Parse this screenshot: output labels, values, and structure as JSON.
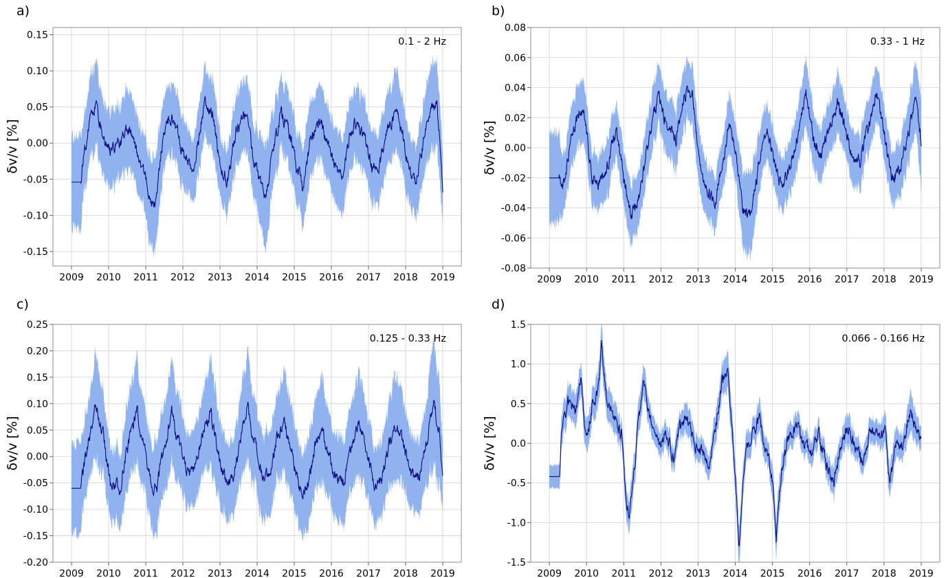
{
  "figure": {
    "band_color": "#90b3f0",
    "line_color": "#0b0b80",
    "panels": [
      "a)",
      "b)",
      "c)",
      "d)"
    ]
  },
  "chart_data": [
    {
      "type": "area",
      "panel": "a)",
      "annotation": "0.1 - 2 Hz",
      "ylabel": "δv/v [%]",
      "xlim": [
        2008.5,
        2019.5
      ],
      "ylim": [
        -0.17,
        0.16
      ],
      "xticks": [
        2009,
        2010,
        2011,
        2012,
        2013,
        2014,
        2015,
        2016,
        2017,
        2018,
        2019
      ],
      "yticks": [
        -0.15,
        -0.1,
        -0.05,
        0.0,
        0.05,
        0.1,
        0.15
      ],
      "ytick_labels": [
        "-0.15",
        "-0.10",
        "-0.05",
        "0.00",
        "0.05",
        "0.10",
        "0.15"
      ],
      "grid": true,
      "series": [
        {
          "x": [
            2009.0,
            2009.25,
            2009.3,
            2009.45,
            2009.65,
            2009.85,
            2010.05,
            2010.3,
            2010.55,
            2010.7,
            2010.95,
            2011.1,
            2011.25,
            2011.45,
            2011.65,
            2011.85,
            2012.05,
            2012.3,
            2012.6,
            2012.8,
            2013.0,
            2013.2,
            2013.45,
            2013.7,
            2013.9,
            2014.1,
            2014.25,
            2014.45,
            2014.65,
            2014.85,
            2015.05,
            2015.25,
            2015.45,
            2015.7,
            2015.9,
            2016.1,
            2016.3,
            2016.5,
            2016.7,
            2016.9,
            2017.1,
            2017.3,
            2017.5,
            2017.75,
            2017.95,
            2018.1,
            2018.3,
            2018.5,
            2018.7,
            2018.85,
            2019.0
          ],
          "y": [
            -0.054,
            -0.054,
            -0.03,
            0.02,
            0.05,
            0.01,
            -0.01,
            0.0,
            0.02,
            0.0,
            -0.04,
            -0.07,
            -0.09,
            0.0,
            0.04,
            0.02,
            -0.02,
            -0.03,
            0.06,
            0.04,
            -0.03,
            -0.05,
            0.02,
            0.04,
            -0.02,
            -0.06,
            -0.07,
            0.0,
            0.04,
            0.02,
            -0.03,
            -0.06,
            0.01,
            0.03,
            0.0,
            -0.03,
            -0.05,
            0.01,
            0.03,
            0.01,
            -0.04,
            -0.03,
            0.02,
            0.04,
            0.0,
            -0.04,
            -0.05,
            0.01,
            0.05,
            0.05,
            -0.06
          ],
          "band": [
            0.063,
            0.063,
            0.05,
            0.055,
            0.06,
            0.05,
            0.055,
            0.05,
            0.055,
            0.05,
            0.05,
            0.06,
            0.065,
            0.05,
            0.05,
            0.05,
            0.045,
            0.045,
            0.05,
            0.05,
            0.045,
            0.045,
            0.05,
            0.05,
            0.05,
            0.06,
            0.07,
            0.05,
            0.05,
            0.05,
            0.05,
            0.06,
            0.05,
            0.05,
            0.05,
            0.05,
            0.05,
            0.05,
            0.05,
            0.05,
            0.05,
            0.05,
            0.05,
            0.055,
            0.05,
            0.05,
            0.05,
            0.05,
            0.06,
            0.06,
            0.05
          ]
        }
      ]
    },
    {
      "type": "area",
      "panel": "b)",
      "annotation": "0.33 - 1 Hz",
      "ylabel": "δv/v [%]",
      "xlim": [
        2008.5,
        2019.5
      ],
      "ylim": [
        -0.08,
        0.08
      ],
      "xticks": [
        2009,
        2010,
        2011,
        2012,
        2013,
        2014,
        2015,
        2016,
        2017,
        2018,
        2019
      ],
      "yticks": [
        -0.08,
        -0.06,
        -0.04,
        -0.02,
        0.0,
        0.02,
        0.04,
        0.06,
        0.08
      ],
      "ytick_labels": [
        "-0.08",
        "-0.06",
        "-0.04",
        "-0.02",
        "0.00",
        "0.02",
        "0.04",
        "0.06",
        "0.08"
      ],
      "grid": true,
      "series": [
        {
          "x": [
            2009.0,
            2009.25,
            2009.35,
            2009.55,
            2009.8,
            2009.95,
            2010.15,
            2010.35,
            2010.6,
            2010.8,
            2011.0,
            2011.2,
            2011.45,
            2011.7,
            2011.95,
            2012.15,
            2012.4,
            2012.7,
            2012.85,
            2013.05,
            2013.25,
            2013.45,
            2013.7,
            2013.85,
            2014.05,
            2014.2,
            2014.4,
            2014.65,
            2014.85,
            2015.05,
            2015.25,
            2015.45,
            2015.7,
            2015.9,
            2016.1,
            2016.3,
            2016.55,
            2016.75,
            2016.95,
            2017.15,
            2017.35,
            2017.6,
            2017.8,
            2018.0,
            2018.2,
            2018.45,
            2018.7,
            2018.85,
            2019.0
          ],
          "y": [
            -0.02,
            -0.02,
            -0.03,
            0.0,
            0.025,
            0.02,
            -0.02,
            -0.025,
            -0.01,
            0.015,
            -0.02,
            -0.045,
            -0.03,
            0.01,
            0.035,
            0.015,
            0.005,
            0.04,
            0.035,
            -0.01,
            -0.03,
            -0.035,
            -0.01,
            0.02,
            -0.01,
            -0.04,
            -0.045,
            -0.01,
            0.01,
            -0.01,
            -0.025,
            -0.015,
            0.01,
            0.035,
            0.005,
            -0.005,
            0.015,
            0.03,
            0.015,
            -0.01,
            -0.01,
            0.015,
            0.035,
            0.01,
            -0.02,
            -0.015,
            0.015,
            0.033,
            0.005
          ],
          "band": [
            0.03,
            0.03,
            0.018,
            0.02,
            0.02,
            0.02,
            0.018,
            0.018,
            0.018,
            0.018,
            0.018,
            0.02,
            0.018,
            0.02,
            0.02,
            0.02,
            0.02,
            0.02,
            0.02,
            0.018,
            0.018,
            0.018,
            0.018,
            0.02,
            0.02,
            0.025,
            0.028,
            0.02,
            0.018,
            0.018,
            0.018,
            0.018,
            0.02,
            0.022,
            0.018,
            0.018,
            0.018,
            0.02,
            0.018,
            0.018,
            0.018,
            0.018,
            0.02,
            0.018,
            0.018,
            0.018,
            0.02,
            0.022,
            0.03
          ]
        }
      ]
    },
    {
      "type": "area",
      "panel": "c)",
      "annotation": "0.125 - 0.33 Hz",
      "ylabel": "δv/v [%]",
      "xlim": [
        2008.5,
        2019.5
      ],
      "ylim": [
        -0.2,
        0.25
      ],
      "xticks": [
        2009,
        2010,
        2011,
        2012,
        2013,
        2014,
        2015,
        2016,
        2017,
        2018,
        2019
      ],
      "yticks": [
        -0.2,
        -0.15,
        -0.1,
        -0.05,
        0.0,
        0.05,
        0.1,
        0.15,
        0.2,
        0.25
      ],
      "ytick_labels": [
        "-0.20",
        "-0.15",
        "-0.10",
        "-0.05",
        "0.00",
        "0.05",
        "0.10",
        "0.15",
        "0.20",
        "0.25"
      ],
      "grid": true,
      "series": [
        {
          "x": [
            2009.0,
            2009.25,
            2009.3,
            2009.5,
            2009.65,
            2009.85,
            2010.05,
            2010.3,
            2010.55,
            2010.75,
            2010.95,
            2011.15,
            2011.3,
            2011.5,
            2011.7,
            2011.9,
            2012.1,
            2012.3,
            2012.55,
            2012.75,
            2012.95,
            2013.15,
            2013.35,
            2013.55,
            2013.75,
            2013.95,
            2014.15,
            2014.35,
            2014.55,
            2014.75,
            2014.95,
            2015.15,
            2015.35,
            2015.55,
            2015.75,
            2015.95,
            2016.15,
            2016.35,
            2016.55,
            2016.75,
            2016.95,
            2017.15,
            2017.35,
            2017.55,
            2017.75,
            2017.95,
            2018.15,
            2018.35,
            2018.55,
            2018.75,
            2018.9,
            2019.0
          ],
          "y": [
            -0.06,
            -0.06,
            -0.03,
            0.04,
            0.1,
            0.04,
            -0.05,
            -0.06,
            0.03,
            0.09,
            0.02,
            -0.05,
            -0.06,
            0.02,
            0.08,
            0.02,
            -0.03,
            -0.03,
            0.05,
            0.08,
            0.01,
            -0.05,
            -0.04,
            0.03,
            0.09,
            0.02,
            -0.04,
            -0.03,
            0.04,
            0.06,
            0.0,
            -0.06,
            -0.06,
            0.02,
            0.05,
            0.0,
            -0.04,
            -0.05,
            0.02,
            0.07,
            0.01,
            -0.05,
            -0.05,
            0.02,
            0.06,
            0.02,
            -0.03,
            -0.04,
            0.02,
            0.1,
            0.05,
            -0.04
          ],
          "band": [
            0.085,
            0.085,
            0.07,
            0.08,
            0.1,
            0.08,
            0.07,
            0.07,
            0.08,
            0.1,
            0.08,
            0.08,
            0.09,
            0.08,
            0.1,
            0.08,
            0.07,
            0.07,
            0.08,
            0.1,
            0.08,
            0.07,
            0.07,
            0.08,
            0.1,
            0.08,
            0.08,
            0.08,
            0.08,
            0.1,
            0.08,
            0.08,
            0.08,
            0.08,
            0.1,
            0.08,
            0.08,
            0.08,
            0.08,
            0.1,
            0.08,
            0.07,
            0.07,
            0.08,
            0.1,
            0.08,
            0.07,
            0.07,
            0.08,
            0.12,
            0.1,
            0.06
          ]
        }
      ]
    },
    {
      "type": "area",
      "panel": "d)",
      "annotation": "0.066 - 0.166 Hz",
      "ylabel": "δv/v [%]",
      "xlim": [
        2008.5,
        2019.5
      ],
      "ylim": [
        -1.5,
        1.5
      ],
      "xticks": [
        2009,
        2010,
        2011,
        2012,
        2013,
        2014,
        2015,
        2016,
        2017,
        2018,
        2019
      ],
      "yticks": [
        -1.5,
        -1.0,
        -0.5,
        0.0,
        0.5,
        1.0,
        1.5
      ],
      "ytick_labels": [
        "-1.5",
        "-1.0",
        "-0.5",
        "0.0",
        "0.5",
        "1.0",
        "1.5"
      ],
      "grid": true,
      "series": [
        {
          "x": [
            2009.0,
            2009.28,
            2009.32,
            2009.5,
            2009.7,
            2009.85,
            2010.0,
            2010.15,
            2010.3,
            2010.4,
            2010.55,
            2010.75,
            2010.95,
            2011.05,
            2011.15,
            2011.25,
            2011.4,
            2011.55,
            2011.75,
            2011.95,
            2012.15,
            2012.35,
            2012.5,
            2012.7,
            2012.9,
            2013.1,
            2013.3,
            2013.5,
            2013.65,
            2013.8,
            2013.95,
            2014.05,
            2014.1,
            2014.25,
            2014.45,
            2014.65,
            2014.85,
            2015.0,
            2015.1,
            2015.25,
            2015.45,
            2015.65,
            2015.85,
            2016.05,
            2016.25,
            2016.45,
            2016.65,
            2016.85,
            2017.05,
            2017.25,
            2017.45,
            2017.65,
            2017.85,
            2018.05,
            2018.15,
            2018.3,
            2018.5,
            2018.7,
            2018.85,
            2019.0
          ],
          "y": [
            -0.42,
            -0.42,
            0.2,
            0.5,
            0.4,
            0.8,
            0.0,
            0.5,
            0.6,
            1.2,
            0.5,
            0.3,
            0.1,
            -0.7,
            -0.9,
            -0.5,
            0.3,
            0.8,
            0.2,
            0.0,
            0.1,
            -0.2,
            0.2,
            0.3,
            0.0,
            -0.1,
            -0.3,
            0.3,
            0.8,
            1.0,
            -0.1,
            -0.8,
            -1.3,
            -0.2,
            0.1,
            0.3,
            -0.1,
            -0.5,
            -1.2,
            -0.3,
            0.1,
            0.2,
            0.0,
            -0.1,
            0.1,
            -0.3,
            -0.5,
            0.0,
            0.2,
            -0.1,
            -0.2,
            0.2,
            0.1,
            0.2,
            -0.6,
            0.0,
            0.0,
            0.4,
            0.2,
            0.0
          ],
          "band": [
            0.15,
            0.15,
            0.2,
            0.2,
            0.2,
            0.2,
            0.2,
            0.2,
            0.25,
            0.25,
            0.2,
            0.2,
            0.15,
            0.2,
            0.2,
            0.2,
            0.2,
            0.2,
            0.15,
            0.15,
            0.15,
            0.15,
            0.15,
            0.2,
            0.15,
            0.15,
            0.15,
            0.2,
            0.2,
            0.25,
            0.2,
            0.25,
            0.25,
            0.2,
            0.15,
            0.2,
            0.15,
            0.2,
            0.25,
            0.2,
            0.15,
            0.15,
            0.15,
            0.15,
            0.15,
            0.15,
            0.2,
            0.15,
            0.2,
            0.15,
            0.15,
            0.15,
            0.15,
            0.2,
            0.2,
            0.2,
            0.15,
            0.25,
            0.2,
            0.15
          ]
        }
      ]
    }
  ]
}
